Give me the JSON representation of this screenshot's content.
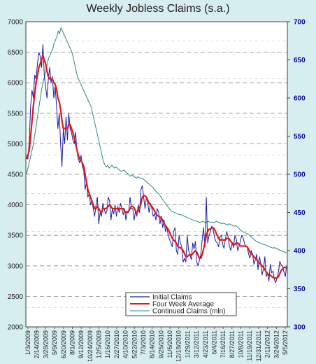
{
  "chart_data": {
    "type": "line",
    "title": "Weekly Jobless Claims (s.a.)",
    "left_axis": {
      "min": 2000,
      "max": 7000,
      "step": 500,
      "ticks": [
        "2000",
        "2500",
        "3000",
        "3500",
        "4000",
        "4500",
        "5000",
        "5500",
        "6000",
        "6500",
        "7000"
      ]
    },
    "right_axis": {
      "min": 300,
      "max": 700,
      "step": 50,
      "ticks": [
        "300",
        "350",
        "400",
        "450",
        "500",
        "550",
        "600",
        "650",
        "700"
      ]
    },
    "x_tick_labels": [
      "1/3/2009",
      "2/14/2009",
      "3/28/2009",
      "5/9/2009",
      "6/20/2009",
      "8/1/2009",
      "9/12/2009",
      "10/24/2009",
      "12/5/2009",
      "1/16/2010",
      "2/27/2010",
      "4/10/2010",
      "5/22/2010",
      "7/3/2010",
      "8/14/2010",
      "9/25/2010",
      "11/6/2010",
      "12/18/2010",
      "1/29/2011",
      "3/12/2011",
      "4/23/2011",
      "6/4/2011",
      "7/16/2011",
      "8/27/2011",
      "10/8/2011",
      "11/19/2011",
      "12/31/2011",
      "2/11/2012",
      "3/24/2012",
      "5/5/2012"
    ],
    "grid": "dashed horizontal",
    "legend_placement": "bottom-center",
    "series": [
      {
        "name": "Initial Claims",
        "axis": "right",
        "color": "#1a1aa6",
        "values": [
          525,
          520,
          545,
          590,
          610,
          600,
          630,
          625,
          645,
          660,
          655,
          640,
          670,
          630,
          615,
          600,
          625,
          640,
          620,
          628,
          600,
          615,
          590,
          560,
          580,
          540,
          510,
          560,
          540,
          575,
          545,
          580,
          560,
          555,
          545,
          540,
          555,
          530,
          520,
          515,
          525,
          510,
          505,
          480,
          490,
          470,
          475,
          460,
          465,
          455,
          445,
          460,
          470,
          435,
          450,
          445,
          462,
          455,
          448,
          452,
          470,
          465,
          440,
          455,
          448,
          460,
          445,
          458,
          450,
          462,
          455,
          447,
          455,
          440,
          452,
          450,
          470,
          455,
          455,
          440,
          452,
          445,
          460,
          450,
          480,
          485,
          470,
          455,
          470,
          462,
          450,
          462,
          455,
          445,
          448,
          440,
          455,
          450,
          435,
          445,
          430,
          440,
          425,
          432,
          420,
          415,
          410,
          405,
          425,
          430,
          400,
          395,
          420,
          410,
          405,
          385,
          390,
          385,
          420,
          400,
          395,
          388,
          410,
          402,
          412,
          385,
          380,
          388,
          395,
          415,
          430,
          405,
          470,
          410,
          420,
          425,
          432,
          428,
          418,
          412,
          410,
          405,
          418,
          420,
          408,
          403,
          415,
          425,
          418,
          406,
          400,
          410,
          404,
          420,
          415,
          400,
          405,
          412,
          420,
          417,
          410,
          405,
          405,
          396,
          390,
          400,
          395,
          382,
          388,
          395,
          375,
          392,
          384,
          368,
          376,
          392,
          366,
          370,
          360,
          382,
          371,
          373,
          362,
          358,
          365,
          372,
          386,
          381,
          380,
          372,
          366,
          380
        ]
      },
      {
        "name": "Four Week Average",
        "axis": "right",
        "color": "#e01818",
        "values": [
          520,
          525,
          532,
          550,
          570,
          590,
          605,
          620,
          630,
          640,
          645,
          650,
          656,
          650,
          645,
          635,
          628,
          625,
          625,
          625,
          620,
          618,
          612,
          600,
          595,
          585,
          570,
          560,
          560,
          560,
          560,
          565,
          565,
          560,
          555,
          548,
          540,
          532,
          525,
          520,
          518,
          515,
          510,
          500,
          490,
          480,
          475,
          470,
          465,
          460,
          455,
          455,
          458,
          455,
          452,
          450,
          455,
          455,
          455,
          456,
          458,
          460,
          458,
          455,
          455,
          455,
          455,
          455,
          455,
          455,
          455,
          455,
          452,
          450,
          450,
          452,
          455,
          458,
          458,
          456,
          452,
          450,
          452,
          455,
          462,
          470,
          472,
          472,
          470,
          466,
          462,
          460,
          458,
          455,
          452,
          448,
          446,
          445,
          444,
          442,
          440,
          436,
          432,
          430,
          428,
          424,
          420,
          416,
          414,
          412,
          410,
          406,
          404,
          404,
          402,
          400,
          396,
          392,
          392,
          394,
          395,
          394,
          396,
          398,
          400,
          398,
          394,
          390,
          390,
          395,
          402,
          410,
          420,
          425,
          428,
          428,
          430,
          430,
          428,
          424,
          420,
          416,
          414,
          414,
          414,
          414,
          414,
          416,
          416,
          415,
          412,
          410,
          408,
          408,
          410,
          410,
          408,
          406,
          406,
          406,
          406,
          406,
          405,
          402,
          398,
          396,
          394,
          392,
          390,
          388,
          386,
          384,
          382,
          380,
          378,
          375,
          372,
          370,
          368,
          368,
          366,
          365,
          364,
          364,
          364,
          366,
          370,
          374,
          376,
          378,
          378,
          377
        ]
      },
      {
        "name": "Continued Claims (mln)",
        "axis": "left",
        "color": "#2a8a86",
        "values": [
          4500,
          4600,
          4700,
          4800,
          4900,
          5000,
          5150,
          5300,
          5450,
          5600,
          5750,
          5900,
          6000,
          6100,
          6200,
          6300,
          6400,
          6450,
          6500,
          6550,
          6650,
          6700,
          6750,
          6850,
          6800,
          6900,
          6850,
          6800,
          6750,
          6700,
          6650,
          6600,
          6550,
          6500,
          6400,
          6300,
          6200,
          6100,
          6050,
          6000,
          5950,
          5900,
          5850,
          5800,
          5750,
          5700,
          5650,
          5600,
          5500,
          5400,
          5300,
          5200,
          5100,
          5000,
          4900,
          4800,
          4700,
          4650,
          4620,
          4650,
          4600,
          4620,
          4650,
          4620,
          4600,
          4620,
          4600,
          4580,
          4560,
          4550,
          4560,
          4570,
          4540,
          4520,
          4500,
          4480,
          4470,
          4490,
          4460,
          4450,
          4440,
          4460,
          4440,
          4430,
          4440,
          4420,
          4400,
          4380,
          4360,
          4340,
          4320,
          4300,
          4280,
          4250,
          4220,
          4200,
          4180,
          4150,
          4120,
          4080,
          4050,
          4020,
          3990,
          3960,
          3930,
          3900,
          3890,
          3880,
          3870,
          3860,
          3850,
          3840,
          3840,
          3830,
          3820,
          3810,
          3800,
          3790,
          3780,
          3770,
          3760,
          3750,
          3740,
          3740,
          3730,
          3720,
          3710,
          3720,
          3730,
          3720,
          3710,
          3720,
          3730,
          3720,
          3710,
          3720,
          3710,
          3720,
          3730,
          3720,
          3710,
          3700,
          3690,
          3700,
          3690,
          3680,
          3670,
          3690,
          3680,
          3670,
          3660,
          3650,
          3660,
          3640,
          3620,
          3600,
          3580,
          3560,
          3550,
          3540,
          3530,
          3520,
          3500,
          3480,
          3460,
          3440,
          3420,
          3400,
          3390,
          3380,
          3370,
          3360,
          3350,
          3350,
          3340,
          3330,
          3320,
          3310,
          3300,
          3290,
          3300,
          3290,
          3280,
          3270,
          3260,
          3250,
          3240,
          3230,
          3220,
          3210
        ]
      }
    ]
  }
}
